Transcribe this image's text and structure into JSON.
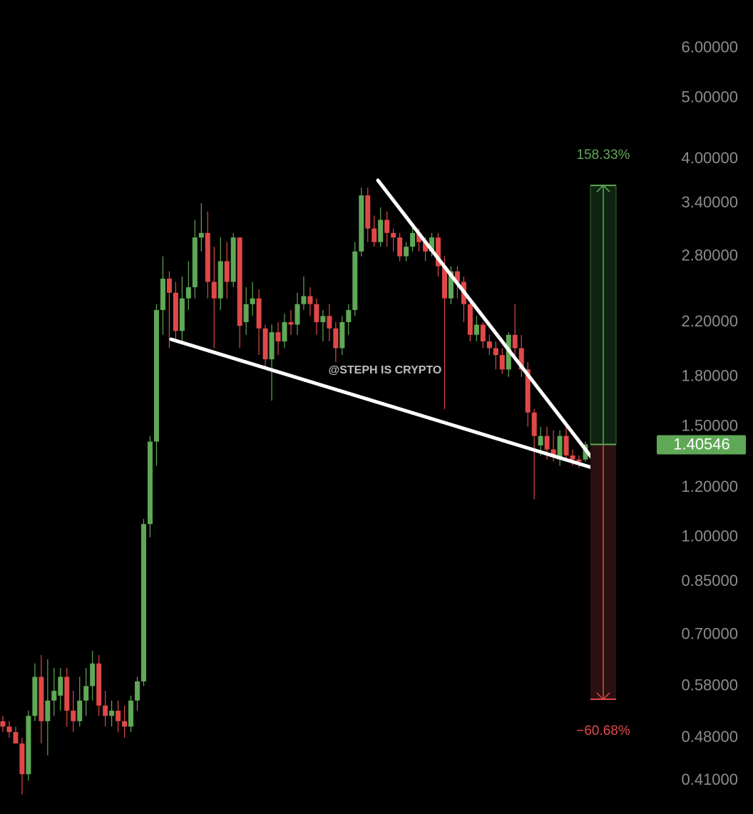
{
  "chart_data": {
    "type": "candlestick",
    "watermark": "@STEPH IS CRYPTO",
    "log_scale": true,
    "up_color": "#5fa856",
    "down_color": "#e04848",
    "open": [
      0.51,
      0.5,
      0.49,
      0.47,
      0.42,
      0.52,
      0.6,
      0.51,
      0.55,
      0.56,
      0.6,
      0.53,
      0.51,
      0.55,
      0.58,
      0.63,
      0.54,
      0.52,
      0.53,
      0.51,
      0.5,
      0.55,
      0.59,
      1.05,
      1.42,
      2.3,
      2.58,
      2.45,
      2.13,
      2.4,
      2.5,
      3.0,
      3.05,
      2.55,
      2.4,
      2.75,
      2.55,
      3.0,
      2.2,
      2.35,
      2.4,
      2.15,
      1.92,
      2.12,
      2.05,
      2.2,
      2.18,
      2.35,
      2.42,
      2.35,
      2.2,
      2.25,
      2.15,
      2.0,
      2.2,
      2.3,
      2.85,
      3.5,
      3.1,
      2.95,
      3.2,
      3.05,
      3.0,
      2.8,
      2.9,
      3.05,
      2.95,
      2.85,
      3.0,
      2.7,
      2.4,
      2.65,
      2.55,
      2.35,
      2.1,
      2.18,
      2.05,
      2.0,
      1.95,
      1.85,
      2.1,
      2.0,
      1.85,
      1.58,
      1.4,
      1.45,
      1.38,
      1.33,
      1.45,
      1.35,
      1.33,
      1.33
    ],
    "high": [
      0.52,
      0.51,
      0.5,
      0.48,
      0.53,
      0.63,
      0.65,
      0.64,
      0.62,
      0.62,
      0.62,
      0.57,
      0.6,
      0.62,
      0.66,
      0.65,
      0.57,
      0.55,
      0.55,
      0.54,
      0.56,
      0.6,
      1.07,
      1.45,
      2.35,
      2.8,
      2.65,
      2.55,
      2.6,
      2.75,
      3.2,
      3.4,
      3.3,
      2.9,
      3.0,
      2.95,
      3.05,
      3.0,
      2.5,
      2.55,
      2.48,
      2.18,
      2.18,
      2.2,
      2.27,
      2.3,
      2.45,
      2.6,
      2.5,
      2.4,
      2.3,
      2.35,
      2.2,
      2.25,
      2.35,
      2.95,
      3.6,
      3.6,
      3.25,
      3.35,
      3.3,
      3.1,
      3.05,
      2.95,
      3.15,
      3.1,
      3.0,
      3.05,
      3.05,
      2.8,
      2.7,
      2.7,
      2.6,
      2.4,
      2.25,
      2.2,
      2.1,
      2.05,
      2.0,
      2.12,
      2.35,
      2.1,
      1.9,
      1.6,
      1.5,
      1.5,
      1.48,
      1.48,
      1.52,
      1.38,
      1.35,
      1.42
    ],
    "low": [
      0.49,
      0.48,
      0.47,
      0.39,
      0.41,
      0.51,
      0.47,
      0.45,
      0.52,
      0.53,
      0.5,
      0.49,
      0.5,
      0.52,
      0.55,
      0.52,
      0.5,
      0.5,
      0.49,
      0.48,
      0.49,
      0.53,
      0.58,
      1.0,
      1.3,
      2.1,
      2.0,
      2.05,
      2.05,
      2.3,
      2.4,
      2.85,
      2.4,
      2.0,
      2.3,
      2.4,
      2.5,
      2.0,
      2.1,
      2.25,
      1.95,
      1.85,
      1.65,
      1.95,
      2.0,
      2.1,
      2.1,
      2.3,
      2.25,
      2.1,
      2.05,
      2.05,
      1.9,
      1.95,
      2.1,
      2.25,
      2.8,
      2.95,
      2.9,
      2.9,
      2.9,
      2.85,
      2.75,
      2.75,
      2.85,
      2.85,
      2.75,
      2.8,
      2.6,
      1.6,
      2.35,
      2.4,
      2.2,
      2.05,
      2.05,
      2.0,
      1.95,
      1.85,
      1.82,
      1.8,
      1.95,
      1.8,
      1.5,
      1.15,
      1.35,
      1.33,
      1.32,
      1.3,
      1.32,
      1.3,
      1.29,
      1.32
    ],
    "close": [
      0.5,
      0.49,
      0.47,
      0.42,
      0.52,
      0.6,
      0.51,
      0.55,
      0.57,
      0.6,
      0.53,
      0.51,
      0.55,
      0.58,
      0.63,
      0.54,
      0.52,
      0.53,
      0.51,
      0.5,
      0.55,
      0.59,
      1.05,
      1.42,
      2.3,
      2.58,
      2.45,
      2.13,
      2.4,
      2.5,
      3.0,
      3.05,
      2.55,
      2.4,
      2.75,
      2.55,
      3.0,
      2.17,
      2.35,
      2.4,
      2.15,
      1.92,
      2.12,
      2.05,
      2.2,
      2.18,
      2.35,
      2.42,
      2.35,
      2.2,
      2.25,
      2.15,
      2.0,
      2.2,
      2.3,
      2.85,
      3.5,
      3.1,
      2.95,
      3.2,
      3.05,
      3.0,
      2.8,
      2.9,
      3.05,
      2.95,
      2.85,
      3.0,
      2.7,
      2.4,
      2.65,
      2.55,
      2.35,
      2.1,
      2.18,
      2.05,
      2.0,
      1.95,
      1.85,
      2.1,
      2.0,
      1.85,
      1.58,
      1.45,
      1.45,
      1.38,
      1.35,
      1.45,
      1.35,
      1.33,
      1.32,
      1.40546
    ],
    "last_price": 1.40546,
    "measure": {
      "target": 3.6307,
      "entry": 1.40546,
      "stop": 0.5527,
      "target_label": "158.33%",
      "stop_label": "−60.68%"
    },
    "ylim": [
      0.363,
      7.16
    ],
    "yticks": [
      {
        "value": 6,
        "label": "6.00000"
      },
      {
        "value": 5,
        "label": "5.00000"
      },
      {
        "value": 4,
        "label": "4.00000"
      },
      {
        "value": 3.4,
        "label": "3.40000"
      },
      {
        "value": 2.8,
        "label": "2.80000"
      },
      {
        "value": 2.2,
        "label": "2.20000"
      },
      {
        "value": 1.8,
        "label": "1.80000"
      },
      {
        "value": 1.5,
        "label": "1.50000"
      },
      {
        "value": 1.2,
        "label": "1.20000"
      },
      {
        "value": 1,
        "label": "1.00000"
      },
      {
        "value": 0.85,
        "label": "0.85000"
      },
      {
        "value": 0.7,
        "label": "0.70000"
      },
      {
        "value": 0.58,
        "label": "0.58000"
      },
      {
        "value": 0.48,
        "label": "0.48000"
      },
      {
        "value": 0.41,
        "label": "0.41000"
      }
    ]
  }
}
